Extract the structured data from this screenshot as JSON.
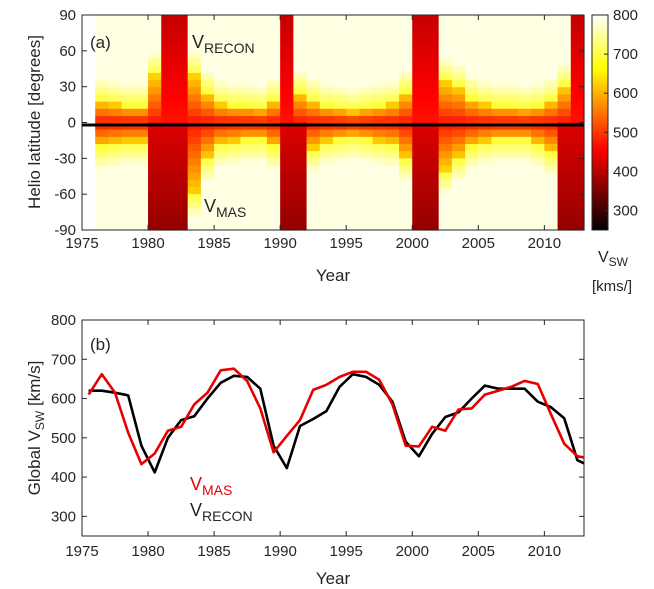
{
  "chart_data": [
    {
      "panel": "(a)",
      "type": "heatmap",
      "xlabel": "Year",
      "ylabel": "Helio latitude [degrees]",
      "xlim": [
        1975,
        2013
      ],
      "ylim": [
        -90,
        90
      ],
      "xticks": [
        1975,
        1980,
        1985,
        1990,
        1995,
        2000,
        2005,
        2010
      ],
      "yticks": [
        -90,
        -60,
        -30,
        0,
        30,
        60,
        90
      ],
      "upper_label": {
        "main": "V",
        "sub": "RECON"
      },
      "lower_label": {
        "main": "V",
        "sub": "MAS"
      },
      "colorbar": {
        "label_main": "V",
        "label_sub": "SW",
        "units": "[kms/]",
        "range": [
          250,
          800
        ],
        "ticks": [
          300,
          400,
          500,
          600,
          700,
          800
        ],
        "colormap": "hot"
      },
      "year_start": 1976,
      "recon_slow_band_halfwidth_deg": [
        18,
        16,
        14,
        14,
        40,
        90,
        90,
        40,
        25,
        16,
        14,
        14,
        12,
        18,
        90,
        25,
        18,
        14,
        12,
        10,
        12,
        14,
        16,
        25,
        90,
        90,
        35,
        30,
        20,
        16,
        14,
        14,
        12,
        14,
        18,
        30,
        90
      ],
      "mas_slow_band_halfwidth_deg": [
        20,
        18,
        16,
        16,
        90,
        90,
        90,
        60,
        30,
        18,
        16,
        14,
        14,
        20,
        90,
        90,
        22,
        16,
        14,
        12,
        14,
        16,
        18,
        30,
        90,
        90,
        40,
        30,
        20,
        16,
        14,
        14,
        14,
        18,
        25,
        90,
        90
      ]
    },
    {
      "panel": "(b)",
      "type": "line",
      "xlabel": "Year",
      "ylabel_main": "Global V",
      "ylabel_sub": "SW",
      "ylabel_units": "[km/s]",
      "xlim": [
        1975,
        2013
      ],
      "ylim": [
        250,
        800
      ],
      "xticks": [
        1975,
        1980,
        1985,
        1990,
        1995,
        2000,
        2005,
        2010
      ],
      "yticks": [
        300,
        400,
        500,
        600,
        700,
        800
      ],
      "series": [
        {
          "label_main": "V",
          "label_sub": "RECON",
          "color": "#000000",
          "x": [
            1975.5,
            1976.5,
            1977.5,
            1978.5,
            1979.5,
            1980.5,
            1981.5,
            1982.5,
            1983.5,
            1984.5,
            1985.5,
            1986.5,
            1987.5,
            1988.5,
            1989.5,
            1990.5,
            1991.5,
            1992.5,
            1993.5,
            1994.5,
            1995.5,
            1996.5,
            1997.5,
            1998.5,
            1999.5,
            2000.5,
            2001.5,
            2002.5,
            2003.5,
            2004.5,
            2005.5,
            2006.5,
            2007.5,
            2008.5,
            2009.5,
            2010.5,
            2011.5,
            2012.5,
            2013.0
          ],
          "y": [
            620,
            620,
            615,
            608,
            480,
            412,
            500,
            545,
            555,
            600,
            640,
            658,
            655,
            625,
            480,
            423,
            530,
            548,
            568,
            630,
            662,
            655,
            635,
            592,
            490,
            453,
            510,
            553,
            565,
            600,
            633,
            625,
            625,
            625,
            592,
            578,
            550,
            443,
            435
          ]
        },
        {
          "label_main": "V",
          "label_sub": "MAS",
          "color": "#e60000",
          "x": [
            1975.5,
            1976.5,
            1977.5,
            1978.5,
            1979.5,
            1980.5,
            1981.5,
            1982.5,
            1983.5,
            1984.5,
            1985.5,
            1986.5,
            1987.5,
            1988.5,
            1989.5,
            1990.5,
            1991.5,
            1992.5,
            1993.5,
            1994.5,
            1995.5,
            1996.5,
            1997.5,
            1998.5,
            1999.5,
            2000.5,
            2001.5,
            2002.5,
            2003.5,
            2004.5,
            2005.5,
            2006.5,
            2007.5,
            2008.5,
            2009.5,
            2010.5,
            2011.5,
            2012.5,
            2013.0
          ],
          "y": [
            610,
            662,
            615,
            513,
            433,
            460,
            518,
            528,
            585,
            615,
            672,
            676,
            645,
            575,
            463,
            505,
            545,
            622,
            635,
            655,
            668,
            668,
            648,
            585,
            480,
            478,
            528,
            518,
            572,
            575,
            610,
            620,
            630,
            645,
            637,
            560,
            485,
            453,
            450
          ]
        }
      ]
    }
  ]
}
